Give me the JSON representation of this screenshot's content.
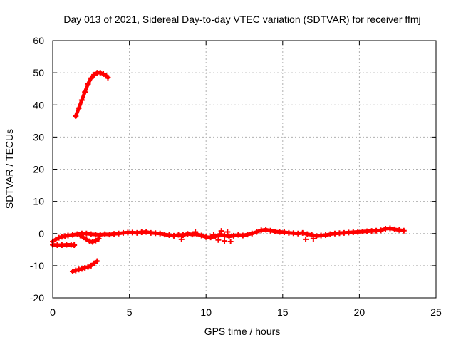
{
  "chart_data": {
    "type": "scatter",
    "title": "Day 013 of 2021, Sidereal Day-to-day VTEC variation (SDTVAR) for receiver ffmj",
    "xlabel": "GPS time / hours",
    "ylabel": "SDTVAR / TECUs",
    "xlim": [
      0,
      25
    ],
    "ylim": [
      -20,
      60
    ],
    "xticks": [
      0,
      5,
      10,
      15,
      20,
      25
    ],
    "yticks": [
      -20,
      -10,
      0,
      10,
      20,
      30,
      40,
      50,
      60
    ],
    "xtick_labels": [
      "0",
      "5",
      "10",
      "15",
      "20",
      "25"
    ],
    "ytick_labels": [
      "-20",
      "-10",
      "0",
      "10",
      "20",
      "30",
      "40",
      "50",
      "60"
    ],
    "grid": true,
    "legend": "none",
    "marker_color": "#ff0000",
    "series": [
      {
        "values": [
          [
            1.5,
            36.5
          ],
          [
            1.7,
            39.0
          ],
          [
            1.9,
            41.5
          ],
          [
            2.1,
            44.0
          ],
          [
            2.3,
            46.5
          ],
          [
            2.5,
            48.3
          ],
          [
            2.7,
            49.4
          ],
          [
            2.9,
            50.0
          ],
          [
            3.1,
            50.0
          ],
          [
            3.3,
            49.6
          ],
          [
            3.5,
            49.0
          ],
          [
            3.6,
            48.5
          ]
        ]
      },
      {
        "values": [
          [
            1.3,
            -11.8
          ],
          [
            1.5,
            -11.5
          ],
          [
            1.7,
            -11.2
          ],
          [
            1.9,
            -11.0
          ],
          [
            2.1,
            -10.7
          ],
          [
            2.3,
            -10.4
          ],
          [
            2.5,
            -10.0
          ],
          [
            2.7,
            -9.3
          ],
          [
            2.9,
            -8.6
          ]
        ]
      },
      {
        "values": [
          [
            0.0,
            -3.5
          ],
          [
            0.3,
            -3.6
          ],
          [
            0.6,
            -3.6
          ],
          [
            0.9,
            -3.5
          ],
          [
            1.2,
            -3.5
          ],
          [
            1.4,
            -3.6
          ]
        ]
      },
      {
        "values": [
          [
            0.0,
            -2.5
          ],
          [
            0.2,
            -1.8
          ],
          [
            0.4,
            -1.3
          ],
          [
            0.6,
            -1.0
          ],
          [
            0.8,
            -0.8
          ],
          [
            1.0,
            -0.6
          ],
          [
            1.3,
            -0.4
          ],
          [
            1.6,
            -0.2
          ],
          [
            1.9,
            0.0
          ],
          [
            2.2,
            0.0
          ],
          [
            2.5,
            -0.2
          ],
          [
            2.8,
            -0.3
          ],
          [
            3.1,
            -0.4
          ],
          [
            3.4,
            -0.2
          ],
          [
            3.7,
            -0.3
          ],
          [
            4.0,
            -0.1
          ],
          [
            4.3,
            0.0
          ],
          [
            4.6,
            0.2
          ],
          [
            4.9,
            0.3
          ],
          [
            5.2,
            0.3
          ],
          [
            5.5,
            0.2
          ],
          [
            5.8,
            0.4
          ],
          [
            6.1,
            0.5
          ],
          [
            6.4,
            0.2
          ],
          [
            6.7,
            0.1
          ],
          [
            7.0,
            0.0
          ],
          [
            7.3,
            -0.3
          ],
          [
            7.6,
            -0.5
          ],
          [
            7.9,
            -0.7
          ],
          [
            8.2,
            -0.4
          ],
          [
            8.5,
            -0.5
          ],
          [
            8.8,
            -0.1
          ],
          [
            9.1,
            -0.3
          ],
          [
            9.4,
            -0.2
          ],
          [
            9.7,
            -0.6
          ],
          [
            10.0,
            -1.1
          ],
          [
            10.3,
            -1.2
          ],
          [
            10.6,
            -0.9
          ],
          [
            10.9,
            -0.3
          ],
          [
            11.2,
            -0.6
          ],
          [
            11.5,
            -0.9
          ],
          [
            11.8,
            -0.7
          ],
          [
            12.1,
            -0.4
          ],
          [
            12.4,
            -0.6
          ],
          [
            12.7,
            -0.3
          ],
          [
            13.0,
            0.0
          ],
          [
            13.3,
            0.5
          ],
          [
            13.6,
            1.0
          ],
          [
            13.9,
            1.2
          ],
          [
            14.2,
            0.9
          ],
          [
            14.5,
            0.6
          ],
          [
            14.8,
            0.5
          ],
          [
            15.1,
            0.4
          ],
          [
            15.4,
            0.2
          ],
          [
            15.7,
            0.1
          ],
          [
            16.0,
            0.0
          ],
          [
            16.3,
            0.2
          ],
          [
            16.6,
            -0.2
          ],
          [
            16.9,
            -0.4
          ],
          [
            17.2,
            -0.8
          ],
          [
            17.5,
            -0.6
          ],
          [
            17.8,
            -0.5
          ],
          [
            18.1,
            -0.2
          ],
          [
            18.4,
            0.0
          ],
          [
            18.7,
            0.1
          ],
          [
            19.0,
            0.2
          ],
          [
            19.3,
            0.3
          ],
          [
            19.6,
            0.4
          ],
          [
            19.9,
            0.5
          ],
          [
            20.2,
            0.6
          ],
          [
            20.5,
            0.7
          ],
          [
            20.8,
            0.8
          ],
          [
            21.1,
            0.9
          ],
          [
            21.4,
            1.0
          ],
          [
            21.7,
            1.5
          ],
          [
            22.0,
            1.6
          ],
          [
            22.3,
            1.3
          ],
          [
            22.6,
            1.1
          ],
          [
            22.9,
            0.9
          ]
        ]
      },
      {
        "values": [
          [
            1.8,
            -0.6
          ],
          [
            2.0,
            -1.2
          ],
          [
            2.2,
            -1.8
          ],
          [
            2.4,
            -2.4
          ],
          [
            2.6,
            -2.6
          ],
          [
            2.8,
            -2.2
          ],
          [
            3.0,
            -1.6
          ]
        ]
      },
      {
        "values": [
          [
            10.5,
            -0.5
          ],
          [
            10.8,
            -2.0
          ],
          [
            11.0,
            0.8
          ],
          [
            11.2,
            -2.3
          ],
          [
            11.4,
            0.5
          ],
          [
            11.6,
            -2.5
          ],
          [
            8.4,
            -1.8
          ],
          [
            9.3,
            0.5
          ],
          [
            16.5,
            -1.8
          ],
          [
            17.0,
            -1.6
          ]
        ]
      }
    ]
  }
}
